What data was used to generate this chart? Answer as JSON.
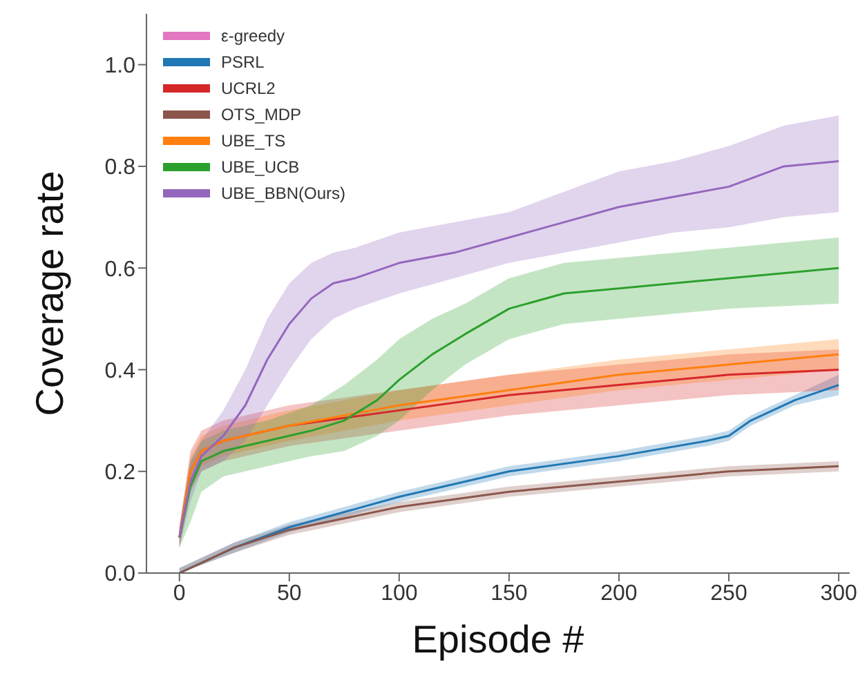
{
  "chart_data": {
    "type": "line",
    "xlabel": "Episode #",
    "ylabel": "Coverage rate",
    "xlim": [
      -15,
      305
    ],
    "xticks": [
      0,
      50,
      100,
      150,
      200,
      250,
      300
    ],
    "ylim": [
      0,
      1.1
    ],
    "yticks": [
      {
        "value": 0,
        "label": "0.0"
      },
      {
        "value": 0.2,
        "label": "0.2"
      },
      {
        "value": 0.4,
        "label": "0.4"
      },
      {
        "value": 0.6,
        "label": "0.6"
      },
      {
        "value": 0.8,
        "label": "0.8"
      },
      {
        "value": 1.0,
        "label": "1.0"
      }
    ],
    "grid": false,
    "legend": "top left",
    "marker": "none",
    "line_style": "solid",
    "series": [
      {
        "name": "ε-greedy",
        "color": "#e377c2"
      },
      {
        "name": "PSRL",
        "color": "#1f77b4",
        "x": [
          0,
          25,
          50,
          100,
          150,
          200,
          240,
          250,
          260,
          280,
          300
        ],
        "values": [
          0.0,
          0.05,
          0.09,
          0.15,
          0.2,
          0.23,
          0.26,
          0.27,
          0.3,
          0.34,
          0.37
        ],
        "lower": [
          0.0,
          0.04,
          0.08,
          0.14,
          0.19,
          0.22,
          0.25,
          0.26,
          0.29,
          0.33,
          0.35
        ],
        "upper": [
          0.01,
          0.06,
          0.1,
          0.16,
          0.21,
          0.24,
          0.27,
          0.28,
          0.31,
          0.35,
          0.39
        ]
      },
      {
        "name": "UCRL2",
        "color": "#d62728",
        "x": [
          0,
          5,
          10,
          20,
          50,
          100,
          150,
          200,
          250,
          300
        ],
        "values": [
          0.07,
          0.2,
          0.24,
          0.26,
          0.29,
          0.32,
          0.35,
          0.37,
          0.39,
          0.4
        ],
        "lower": [
          0.05,
          0.16,
          0.2,
          0.22,
          0.25,
          0.28,
          0.31,
          0.33,
          0.35,
          0.36
        ],
        "upper": [
          0.09,
          0.24,
          0.28,
          0.3,
          0.33,
          0.36,
          0.39,
          0.41,
          0.43,
          0.44
        ]
      },
      {
        "name": "OTS_MDP",
        "color": "#8c564b",
        "x": [
          0,
          25,
          50,
          100,
          150,
          200,
          250,
          300
        ],
        "values": [
          0.0,
          0.05,
          0.085,
          0.13,
          0.16,
          0.18,
          0.2,
          0.21
        ],
        "lower": [
          0.0,
          0.04,
          0.075,
          0.12,
          0.15,
          0.17,
          0.19,
          0.2
        ],
        "upper": [
          0.01,
          0.06,
          0.095,
          0.14,
          0.17,
          0.19,
          0.21,
          0.22
        ]
      },
      {
        "name": "UBE_TS",
        "color": "#ff7f0e",
        "x": [
          0,
          5,
          10,
          20,
          50,
          100,
          150,
          200,
          250,
          300
        ],
        "values": [
          0.07,
          0.2,
          0.24,
          0.26,
          0.29,
          0.33,
          0.36,
          0.39,
          0.41,
          0.43
        ],
        "lower": [
          0.05,
          0.17,
          0.21,
          0.23,
          0.26,
          0.3,
          0.33,
          0.36,
          0.38,
          0.4
        ],
        "upper": [
          0.09,
          0.23,
          0.27,
          0.29,
          0.32,
          0.36,
          0.39,
          0.42,
          0.44,
          0.46
        ]
      },
      {
        "name": "UBE_UCB",
        "color": "#2ca02c",
        "x": [
          0,
          5,
          10,
          20,
          40,
          60,
          75,
          90,
          100,
          115,
          130,
          150,
          175,
          200,
          250,
          300
        ],
        "values": [
          0.07,
          0.17,
          0.22,
          0.24,
          0.26,
          0.28,
          0.3,
          0.34,
          0.38,
          0.43,
          0.47,
          0.52,
          0.55,
          0.56,
          0.58,
          0.6
        ],
        "lower": [
          0.05,
          0.1,
          0.16,
          0.19,
          0.21,
          0.23,
          0.24,
          0.27,
          0.3,
          0.36,
          0.41,
          0.46,
          0.49,
          0.5,
          0.52,
          0.53
        ],
        "upper": [
          0.09,
          0.22,
          0.26,
          0.28,
          0.3,
          0.33,
          0.37,
          0.42,
          0.46,
          0.5,
          0.53,
          0.58,
          0.61,
          0.62,
          0.64,
          0.66
        ]
      },
      {
        "name": "UBE_BBN(Ours)",
        "color": "#9467bd",
        "x": [
          0,
          5,
          10,
          20,
          30,
          40,
          50,
          60,
          70,
          80,
          100,
          125,
          150,
          175,
          200,
          225,
          250,
          275,
          300
        ],
        "values": [
          0.07,
          0.18,
          0.23,
          0.27,
          0.33,
          0.42,
          0.49,
          0.54,
          0.57,
          0.58,
          0.61,
          0.63,
          0.66,
          0.69,
          0.72,
          0.74,
          0.76,
          0.8,
          0.81
        ],
        "lower": [
          0.05,
          0.14,
          0.2,
          0.22,
          0.26,
          0.33,
          0.4,
          0.46,
          0.5,
          0.52,
          0.55,
          0.58,
          0.61,
          0.63,
          0.65,
          0.67,
          0.68,
          0.7,
          0.71
        ],
        "upper": [
          0.09,
          0.22,
          0.26,
          0.32,
          0.4,
          0.5,
          0.57,
          0.61,
          0.63,
          0.64,
          0.67,
          0.69,
          0.71,
          0.75,
          0.79,
          0.81,
          0.84,
          0.88,
          0.9
        ]
      }
    ]
  }
}
